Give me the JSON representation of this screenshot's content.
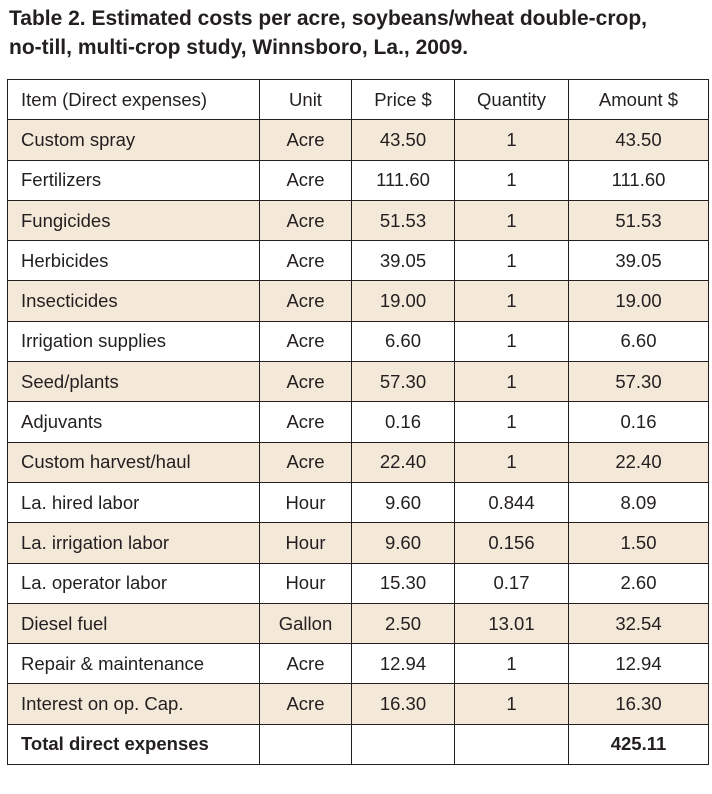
{
  "title_line1": "Table 2. Estimated costs per acre, soybeans/wheat double-crop,",
  "title_line2": "no-till, multi-crop study, Winnsboro, La., 2009.",
  "headers": {
    "item": "Item (Direct expenses)",
    "unit": "Unit",
    "price": "Price $",
    "quantity": "Quantity",
    "amount": "Amount $"
  },
  "rows": [
    {
      "item": "Custom spray",
      "unit": "Acre",
      "price": "43.50",
      "quantity": "1",
      "amount": "43.50"
    },
    {
      "item": "Fertilizers",
      "unit": "Acre",
      "price": "111.60",
      "quantity": "1",
      "amount": "111.60"
    },
    {
      "item": "Fungicides",
      "unit": "Acre",
      "price": "51.53",
      "quantity": "1",
      "amount": "51.53"
    },
    {
      "item": "Herbicides",
      "unit": "Acre",
      "price": "39.05",
      "quantity": "1",
      "amount": "39.05"
    },
    {
      "item": "Insecticides",
      "unit": "Acre",
      "price": "19.00",
      "quantity": "1",
      "amount": "19.00"
    },
    {
      "item": "Irrigation supplies",
      "unit": "Acre",
      "price": "6.60",
      "quantity": "1",
      "amount": "6.60"
    },
    {
      "item": "Seed/plants",
      "unit": "Acre",
      "price": "57.30",
      "quantity": "1",
      "amount": "57.30"
    },
    {
      "item": "Adjuvants",
      "unit": "Acre",
      "price": "0.16",
      "quantity": "1",
      "amount": "0.16"
    },
    {
      "item": "Custom harvest/haul",
      "unit": "Acre",
      "price": "22.40",
      "quantity": "1",
      "amount": "22.40"
    },
    {
      "item": "La. hired labor",
      "unit": "Hour",
      "price": "9.60",
      "quantity": "0.844",
      "amount": "8.09"
    },
    {
      "item": "La. irrigation labor",
      "unit": "Hour",
      "price": "9.60",
      "quantity": "0.156",
      "amount": "1.50"
    },
    {
      "item": "La. operator labor",
      "unit": "Hour",
      "price": "15.30",
      "quantity": "0.17",
      "amount": "2.60"
    },
    {
      "item": "Diesel fuel",
      "unit": "Gallon",
      "price": "2.50",
      "quantity": "13.01",
      "amount": "32.54"
    },
    {
      "item": "Repair & maintenance",
      "unit": "Acre",
      "price": "12.94",
      "quantity": "1",
      "amount": "12.94"
    },
    {
      "item": "Interest on op. Cap.",
      "unit": "Acre",
      "price": "16.30",
      "quantity": "1",
      "amount": "16.30"
    }
  ],
  "total": {
    "label": "Total direct expenses",
    "amount": "425.11"
  },
  "colors": {
    "band": "#f4e8d8",
    "rule": "#231f20"
  }
}
